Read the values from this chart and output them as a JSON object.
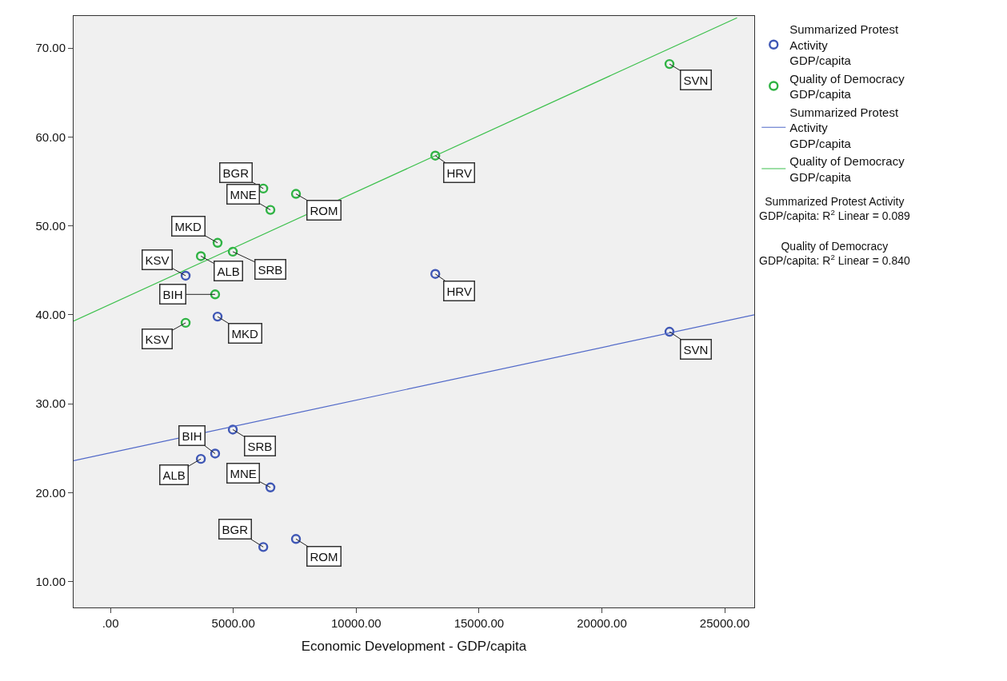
{
  "chart_data": {
    "type": "scatter",
    "xlabel": "Economic Development - GDP/capita",
    "xlim": [
      -1500,
      26200
    ],
    "xticks": [
      {
        "value": 0,
        "label": ".00"
      },
      {
        "value": 5000,
        "label": "5000.00"
      },
      {
        "value": 10000,
        "label": "10000.00"
      },
      {
        "value": 15000,
        "label": "15000.00"
      },
      {
        "value": 20000,
        "label": "20000.00"
      },
      {
        "value": 25000,
        "label": "25000.00"
      }
    ],
    "ylim": [
      7.1,
      73.6
    ],
    "yticks": [
      {
        "value": 10,
        "label": "10.00"
      },
      {
        "value": 20,
        "label": "20.00"
      },
      {
        "value": 30,
        "label": "30.00"
      },
      {
        "value": 40,
        "label": "40.00"
      },
      {
        "value": 50,
        "label": "50.00"
      },
      {
        "value": 60,
        "label": "60.00"
      },
      {
        "value": 70,
        "label": "70.00"
      }
    ],
    "grid": false,
    "legend": "top right",
    "marker": "circle",
    "series": [
      {
        "name": "Summarized Protest\nActivity\nGDP/capita",
        "color": "#3f57b5",
        "x": [
          3060,
          13220,
          4360,
          22750,
          4980,
          4260,
          3680,
          6510,
          6220,
          7550
        ],
        "values": [
          44.4,
          44.6,
          39.8,
          38.1,
          27.1,
          24.4,
          23.8,
          20.6,
          13.9,
          14.8
        ]
      },
      {
        "name": "Quality of Democracy\nGDP/capita",
        "color": "#2fb344",
        "x": [
          22750,
          13220,
          6220,
          7550,
          6510,
          4360,
          4980,
          3680,
          4260,
          3060
        ],
        "values": [
          68.2,
          57.9,
          54.2,
          53.6,
          51.8,
          48.1,
          47.1,
          46.6,
          42.3,
          39.1
        ]
      },
      {
        "name": "Summarized Protest\nActivity\nGDP/capita",
        "type": "line",
        "marker": "none",
        "color": "#5068c8",
        "x": [
          -1500,
          26200
        ],
        "values": [
          23.6,
          40.0
        ]
      },
      {
        "name": "Quality of Democracy\nGDP/capita",
        "type": "line",
        "marker": "none",
        "color": "#3cc04c",
        "x": [
          -1500,
          25500
        ],
        "values": [
          39.3,
          73.4
        ]
      }
    ],
    "annotations": [
      {
        "text": "SVN",
        "x": 22750,
        "y": 68.2
      },
      {
        "text": "HRV",
        "x": 13220,
        "y": 57.9
      },
      {
        "text": "BGR",
        "x": 6220,
        "y": 54.2
      },
      {
        "text": "ROM",
        "x": 7550,
        "y": 53.6
      },
      {
        "text": "MNE",
        "x": 6510,
        "y": 51.8
      },
      {
        "text": "MKD",
        "x": 4360,
        "y": 48.1
      },
      {
        "text": "SRB",
        "x": 4980,
        "y": 47.1
      },
      {
        "text": "ALB",
        "x": 3680,
        "y": 46.6
      },
      {
        "text": "BIH",
        "x": 4260,
        "y": 42.3
      },
      {
        "text": "KSV",
        "x": 3060,
        "y": 39.1
      },
      {
        "text": "KSV",
        "x": 3060,
        "y": 44.4
      },
      {
        "text": "HRV",
        "x": 13220,
        "y": 44.6
      },
      {
        "text": "MKD",
        "x": 4360,
        "y": 39.8
      },
      {
        "text": "SVN",
        "x": 22750,
        "y": 38.1
      },
      {
        "text": "SRB",
        "x": 4980,
        "y": 27.1
      },
      {
        "text": "BIH",
        "x": 4260,
        "y": 24.4
      },
      {
        "text": "ALB",
        "x": 3680,
        "y": 23.8
      },
      {
        "text": "MNE",
        "x": 6510,
        "y": 20.6
      },
      {
        "text": "BGR",
        "x": 6220,
        "y": 13.9
      },
      {
        "text": "ROM",
        "x": 7550,
        "y": 14.8
      },
      "Summarized Protest Activity\nGDP/capita: R$^{2}$ Linear = 0.089",
      "Quality of Democracy\nGDP/capita: R$^{2}$ Linear = 0.840"
    ]
  }
}
